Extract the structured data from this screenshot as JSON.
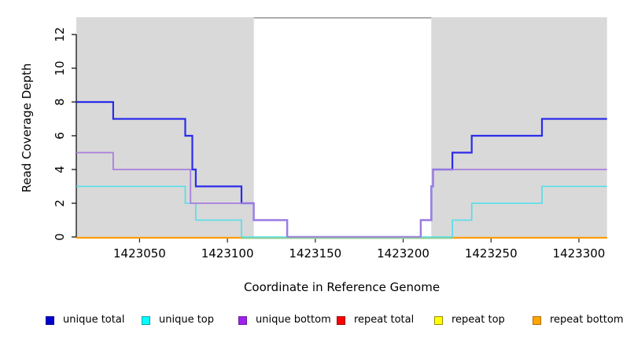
{
  "figure": {
    "x_axis_title": "Coordinate in Reference Genome",
    "y_axis_title": "Read Coverage Depth"
  },
  "chart_data": {
    "type": "line",
    "subtype": "step-coverage-plot",
    "title": "",
    "xlabel": "Coordinate in Reference Genome",
    "ylabel": "Read Coverage Depth",
    "xlim": [
      1423014,
      1423316
    ],
    "ylim": [
      0,
      13.02
    ],
    "x_ticks": [
      1423050,
      1423100,
      1423150,
      1423200,
      1423250,
      1423300
    ],
    "y_ticks": [
      0,
      2,
      4,
      6,
      8,
      10,
      12
    ],
    "grid": "off",
    "legend_position": "bottom",
    "panel_bg": "#d9d9d9",
    "highlight_region": {
      "x0": 1423115,
      "x1": 1423216,
      "fill": "#ffffff",
      "top_border": "#949494",
      "meaning": "unshaded central region"
    },
    "series": [
      {
        "name": "unique total",
        "color": "#2b2bea",
        "lwd": 2.2,
        "flat_zero": false,
        "steps": [
          [
            1423014,
            8
          ],
          [
            1423035,
            7
          ],
          [
            1423076,
            6
          ],
          [
            1423080,
            4
          ],
          [
            1423082,
            3
          ],
          [
            1423108,
            2
          ],
          [
            1423115,
            1
          ],
          [
            1423134,
            0
          ],
          [
            1423210,
            1
          ],
          [
            1423216,
            3
          ],
          [
            1423217,
            4
          ],
          [
            1423228,
            5
          ],
          [
            1423239,
            6
          ],
          [
            1423279,
            7
          ],
          [
            1423316,
            7
          ]
        ]
      },
      {
        "name": "unique top",
        "color": "#4cdfe9",
        "lwd": 1.6,
        "flat_zero": false,
        "steps": [
          [
            1423014,
            3
          ],
          [
            1423076,
            2
          ],
          [
            1423082,
            1
          ],
          [
            1423108,
            0
          ],
          [
            1423228,
            1
          ],
          [
            1423239,
            2
          ],
          [
            1423279,
            3
          ],
          [
            1423316,
            3
          ]
        ]
      },
      {
        "name": "unique bottom",
        "color": "#a77fdd",
        "lwd": 1.8,
        "flat_zero": false,
        "steps": [
          [
            1423014,
            5
          ],
          [
            1423035,
            4
          ],
          [
            1423079,
            2
          ],
          [
            1423115,
            1
          ],
          [
            1423134,
            0
          ],
          [
            1423210,
            1
          ],
          [
            1423216,
            3
          ],
          [
            1423217,
            4
          ],
          [
            1423316,
            4
          ]
        ]
      },
      {
        "name": "repeat total",
        "color": "#dd0000",
        "lwd": 1.5,
        "flat_zero": true,
        "steps": [
          [
            1423014,
            0
          ],
          [
            1423316,
            0
          ]
        ]
      },
      {
        "name": "repeat top",
        "color": "#f0e400",
        "lwd": 1.5,
        "flat_zero": true,
        "steps": [
          [
            1423014,
            0
          ],
          [
            1423316,
            0
          ]
        ]
      },
      {
        "name": "repeat bottom",
        "color": "#ff9d0a",
        "lwd": 2.2,
        "flat_zero": true,
        "steps": [
          [
            1423014,
            0
          ],
          [
            1423316,
            0
          ]
        ]
      }
    ],
    "annotations": [
      {
        "name": "green-baseline-segment",
        "type": "segment",
        "x0": 1423108,
        "x1": 1423228,
        "y": 0,
        "color": "#95cf95",
        "lwd": 1.8
      }
    ]
  },
  "legend": {
    "items": [
      {
        "label": "unique total",
        "fill": "#0000cd",
        "border": "#000090"
      },
      {
        "label": "unique top",
        "fill": "#00ffff",
        "border": "#00a3a8"
      },
      {
        "label": "unique bottom",
        "fill": "#a020f0",
        "border": "#6a1b9a"
      },
      {
        "label": "repeat total",
        "fill": "#ff0000",
        "border": "#990000"
      },
      {
        "label": "repeat top",
        "fill": "#ffff00",
        "border": "#9b8e00"
      },
      {
        "label": "repeat bottom",
        "fill": "#ffa500",
        "border": "#b06f00"
      }
    ]
  }
}
